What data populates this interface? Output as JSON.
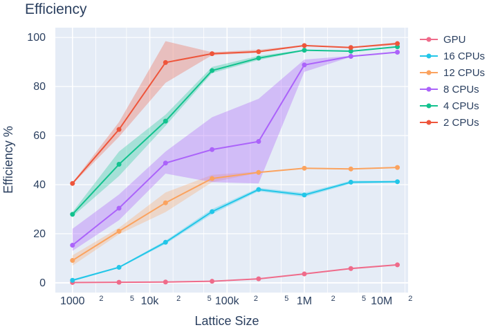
{
  "chart_data": {
    "type": "line",
    "title": "Efficiency",
    "xlabel": "Lattice Size",
    "ylabel": "Efficiency %",
    "x_scale": "log",
    "xlim": [
      600,
      22000000
    ],
    "ylim": [
      -4,
      104
    ],
    "grid": true,
    "legend_position": "right",
    "x": [
      1000,
      4000,
      16000,
      64000,
      256000,
      1000000,
      4000000,
      16000000
    ],
    "x_ticks": [
      {
        "value": 1000,
        "label": "1000",
        "major": true
      },
      {
        "value": 2000,
        "label": "2",
        "major": false
      },
      {
        "value": 5000,
        "label": "5",
        "major": false
      },
      {
        "value": 10000,
        "label": "10k",
        "major": true
      },
      {
        "value": 20000,
        "label": "2",
        "major": false
      },
      {
        "value": 50000,
        "label": "5",
        "major": false
      },
      {
        "value": 100000,
        "label": "100k",
        "major": true
      },
      {
        "value": 200000,
        "label": "2",
        "major": false
      },
      {
        "value": 500000,
        "label": "5",
        "major": false
      },
      {
        "value": 1000000,
        "label": "1M",
        "major": true
      },
      {
        "value": 2000000,
        "label": "2",
        "major": false
      },
      {
        "value": 5000000,
        "label": "5",
        "major": false
      },
      {
        "value": 10000000,
        "label": "10M",
        "major": true
      },
      {
        "value": 20000000,
        "label": "2",
        "major": false
      }
    ],
    "y_ticks": [
      {
        "value": 0,
        "label": "0"
      },
      {
        "value": 20,
        "label": "20"
      },
      {
        "value": 40,
        "label": "40"
      },
      {
        "value": 60,
        "label": "60"
      },
      {
        "value": 80,
        "label": "80"
      },
      {
        "value": 100,
        "label": "100"
      }
    ],
    "series": [
      {
        "name": "GPU",
        "color": "#EF553B00",
        "line_color": "#ef6b8a",
        "band_opacity": 0.3,
        "values": [
          0.1,
          0.2,
          0.3,
          0.6,
          1.6,
          3.6,
          5.8,
          7.3
        ],
        "lower": [
          0.0,
          0.1,
          0.2,
          0.5,
          1.4,
          3.4,
          5.6,
          7.1
        ],
        "upper": [
          0.2,
          0.3,
          0.4,
          0.7,
          1.8,
          3.8,
          6.0,
          7.5
        ]
      },
      {
        "name": "16 CPUs",
        "line_color": "#22c6e8",
        "band_opacity": 0.3,
        "values": [
          1.0,
          6.3,
          16.5,
          29.0,
          38.0,
          35.8,
          41.0,
          41.2
        ],
        "lower": [
          0.6,
          6.0,
          15.8,
          28.0,
          37.3,
          35.0,
          40.4,
          40.8
        ],
        "upper": [
          1.4,
          6.6,
          17.2,
          30.0,
          38.7,
          36.6,
          41.6,
          41.6
        ]
      },
      {
        "name": "12 CPUs",
        "line_color": "#fba35f",
        "band_opacity": 0.3,
        "values": [
          9.1,
          21.0,
          32.6,
          42.5,
          45.0,
          46.7,
          46.4,
          47.0
        ],
        "lower": [
          7.0,
          19.8,
          28.8,
          41.0,
          44.8,
          46.6,
          46.2,
          46.8
        ],
        "upper": [
          11.2,
          22.4,
          36.8,
          44.0,
          45.3,
          46.9,
          46.6,
          47.2
        ]
      },
      {
        "name": "8 CPUs",
        "line_color": "#ab63fa",
        "band_opacity": 0.35,
        "values": [
          15.3,
          30.4,
          48.8,
          54.3,
          57.6,
          88.8,
          92.3,
          94.0
        ],
        "lower": [
          13.0,
          25.5,
          44.5,
          41.0,
          40.5,
          86.0,
          92.1,
          93.8
        ],
        "upper": [
          22.0,
          36.0,
          53.5,
          67.5,
          75.0,
          91.0,
          92.5,
          94.2
        ]
      },
      {
        "name": "4 CPUs",
        "line_color": "#12c28e",
        "band_opacity": 0.3,
        "values": [
          27.9,
          48.3,
          65.9,
          86.5,
          91.6,
          94.8,
          94.4,
          96.2
        ],
        "lower": [
          27.0,
          43.5,
          64.0,
          85.5,
          90.8,
          94.6,
          94.2,
          96.0
        ],
        "upper": [
          28.8,
          53.5,
          68.5,
          88.0,
          92.5,
          95.0,
          94.6,
          96.4
        ]
      },
      {
        "name": "2 CPUs",
        "line_color": "#ee553b",
        "band_opacity": 0.3,
        "values": [
          40.5,
          62.5,
          89.8,
          93.4,
          94.2,
          96.7,
          95.9,
          97.5
        ],
        "lower": [
          40.2,
          59.5,
          81.5,
          92.8,
          93.8,
          96.5,
          95.7,
          97.0
        ],
        "upper": [
          40.8,
          65.5,
          98.5,
          94.0,
          95.0,
          96.9,
          96.1,
          98.0
        ]
      }
    ]
  }
}
